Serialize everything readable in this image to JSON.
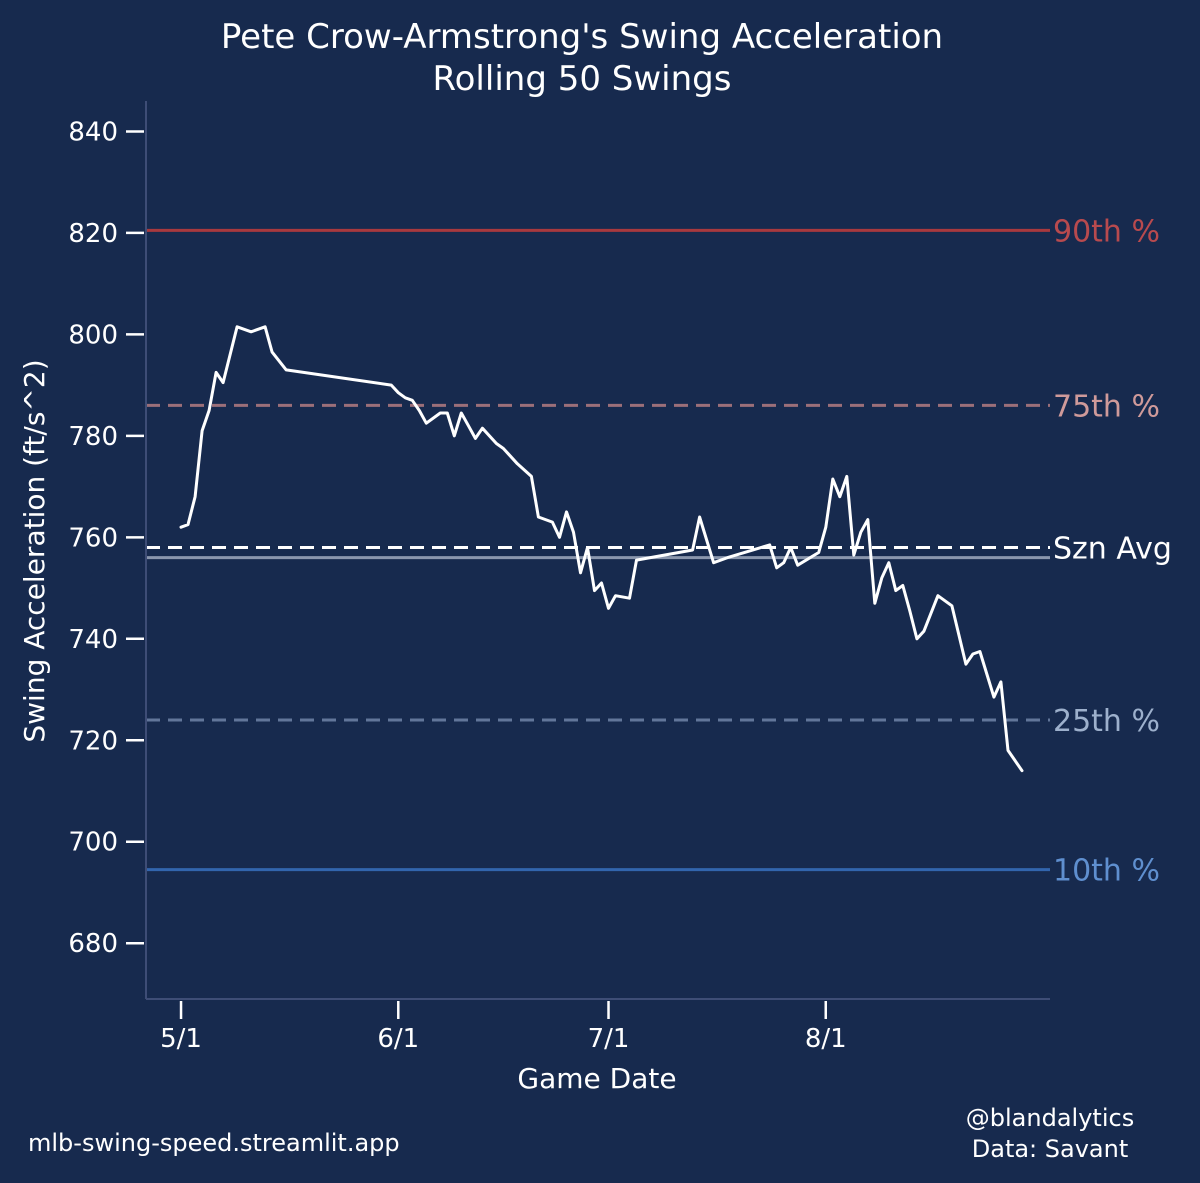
{
  "chart_data": {
    "type": "line",
    "title": "Pete Crow-Armstrong's Swing Acceleration",
    "subtitle": "Rolling 50 Swings",
    "xlabel": "Game Date",
    "ylabel": "Swing Acceleration (ft/s^2)",
    "year": 2024,
    "xlim": [
      "2024-04-26",
      "2024-09-02"
    ],
    "ylim": [
      669,
      846
    ],
    "x_ticks": [
      {
        "date": "2024-05-01",
        "label": "5/1"
      },
      {
        "date": "2024-06-01",
        "label": "6/1"
      },
      {
        "date": "2024-07-01",
        "label": "7/1"
      },
      {
        "date": "2024-08-01",
        "label": "8/1"
      }
    ],
    "y_ticks": [
      680,
      700,
      720,
      740,
      760,
      780,
      800,
      820,
      840
    ],
    "grid": false,
    "reference_lines": [
      {
        "label": "90th %",
        "value": 820.5,
        "style": "solid",
        "color": "#a8393e",
        "label_color": "#b84a4e"
      },
      {
        "label": "75th %",
        "value": 786,
        "style": "dashed",
        "color": "#9b6f79",
        "label_color": "#cf9a9a"
      },
      {
        "label": "Szn Avg",
        "value": 758,
        "style": "dashed",
        "color": "#ffffff",
        "label_color": "#ffffff"
      },
      {
        "label": "25th %",
        "value": 724,
        "style": "dashed",
        "color": "#62769a",
        "label_color": "#9db0cc"
      },
      {
        "label": "10th %",
        "value": 694.5,
        "style": "solid",
        "color": "#3265ad",
        "label_color": "#5f8fcf"
      }
    ],
    "median_line": {
      "value": 756,
      "color": "#8a96ad"
    },
    "series": [
      {
        "color": "#ffffff",
        "points": [
          [
            "2024-05-01",
            762
          ],
          [
            "2024-05-02",
            762.5
          ],
          [
            "2024-05-03",
            768
          ],
          [
            "2024-05-04",
            781
          ],
          [
            "2024-05-05",
            785
          ],
          [
            "2024-05-06",
            792.5
          ],
          [
            "2024-05-07",
            790.5
          ],
          [
            "2024-05-09",
            801.5
          ],
          [
            "2024-05-11",
            800.5
          ],
          [
            "2024-05-13",
            801.5
          ],
          [
            "2024-05-14",
            796.5
          ],
          [
            "2024-05-16",
            793
          ],
          [
            "2024-05-31",
            790
          ],
          [
            "2024-06-01",
            788.5
          ],
          [
            "2024-06-02",
            787.5
          ],
          [
            "2024-06-03",
            787
          ],
          [
            "2024-06-04",
            785
          ],
          [
            "2024-06-05",
            782.5
          ],
          [
            "2024-06-07",
            784.5
          ],
          [
            "2024-06-08",
            784.5
          ],
          [
            "2024-06-09",
            780
          ],
          [
            "2024-06-10",
            784.5
          ],
          [
            "2024-06-11",
            782
          ],
          [
            "2024-06-12",
            779.5
          ],
          [
            "2024-06-13",
            781.5
          ],
          [
            "2024-06-15",
            778.5
          ],
          [
            "2024-06-16",
            777.5
          ],
          [
            "2024-06-18",
            774.5
          ],
          [
            "2024-06-20",
            772
          ],
          [
            "2024-06-21",
            764
          ],
          [
            "2024-06-23",
            763
          ],
          [
            "2024-06-24",
            760
          ],
          [
            "2024-06-25",
            765
          ],
          [
            "2024-06-26",
            761
          ],
          [
            "2024-06-27",
            753
          ],
          [
            "2024-06-28",
            758
          ],
          [
            "2024-06-29",
            749.5
          ],
          [
            "2024-06-30",
            751
          ],
          [
            "2024-07-01",
            746
          ],
          [
            "2024-07-02",
            748.5
          ],
          [
            "2024-07-04",
            748
          ],
          [
            "2024-07-05",
            755.5
          ],
          [
            "2024-07-13",
            757.5
          ],
          [
            "2024-07-14",
            764
          ],
          [
            "2024-07-16",
            755
          ],
          [
            "2024-07-18",
            756
          ],
          [
            "2024-07-24",
            758.5
          ],
          [
            "2024-07-25",
            754
          ],
          [
            "2024-07-26",
            755
          ],
          [
            "2024-07-27",
            758
          ],
          [
            "2024-07-28",
            754.5
          ],
          [
            "2024-07-31",
            757
          ],
          [
            "2024-08-01",
            762
          ],
          [
            "2024-08-02",
            771.5
          ],
          [
            "2024-08-03",
            768
          ],
          [
            "2024-08-04",
            772
          ],
          [
            "2024-08-05",
            756.5
          ],
          [
            "2024-08-06",
            761
          ],
          [
            "2024-08-07",
            763.5
          ],
          [
            "2024-08-08",
            747
          ],
          [
            "2024-08-09",
            752
          ],
          [
            "2024-08-10",
            755
          ],
          [
            "2024-08-11",
            749.5
          ],
          [
            "2024-08-12",
            750.5
          ],
          [
            "2024-08-13",
            745.5
          ],
          [
            "2024-08-14",
            740
          ],
          [
            "2024-08-15",
            741.5
          ],
          [
            "2024-08-17",
            748.5
          ],
          [
            "2024-08-19",
            746.5
          ],
          [
            "2024-08-21",
            735
          ],
          [
            "2024-08-22",
            737
          ],
          [
            "2024-08-23",
            737.5
          ],
          [
            "2024-08-25",
            728.5
          ],
          [
            "2024-08-26",
            731.5
          ],
          [
            "2024-08-27",
            718
          ],
          [
            "2024-08-29",
            714
          ]
        ]
      }
    ]
  },
  "footer": {
    "left": "mlb-swing-speed.streamlit.app",
    "right_line1": "@blandalytics",
    "right_line2": "Data: Savant"
  },
  "colors": {
    "background": "#172a4e",
    "axis": "#3e4d76",
    "text": "#ffffff"
  }
}
